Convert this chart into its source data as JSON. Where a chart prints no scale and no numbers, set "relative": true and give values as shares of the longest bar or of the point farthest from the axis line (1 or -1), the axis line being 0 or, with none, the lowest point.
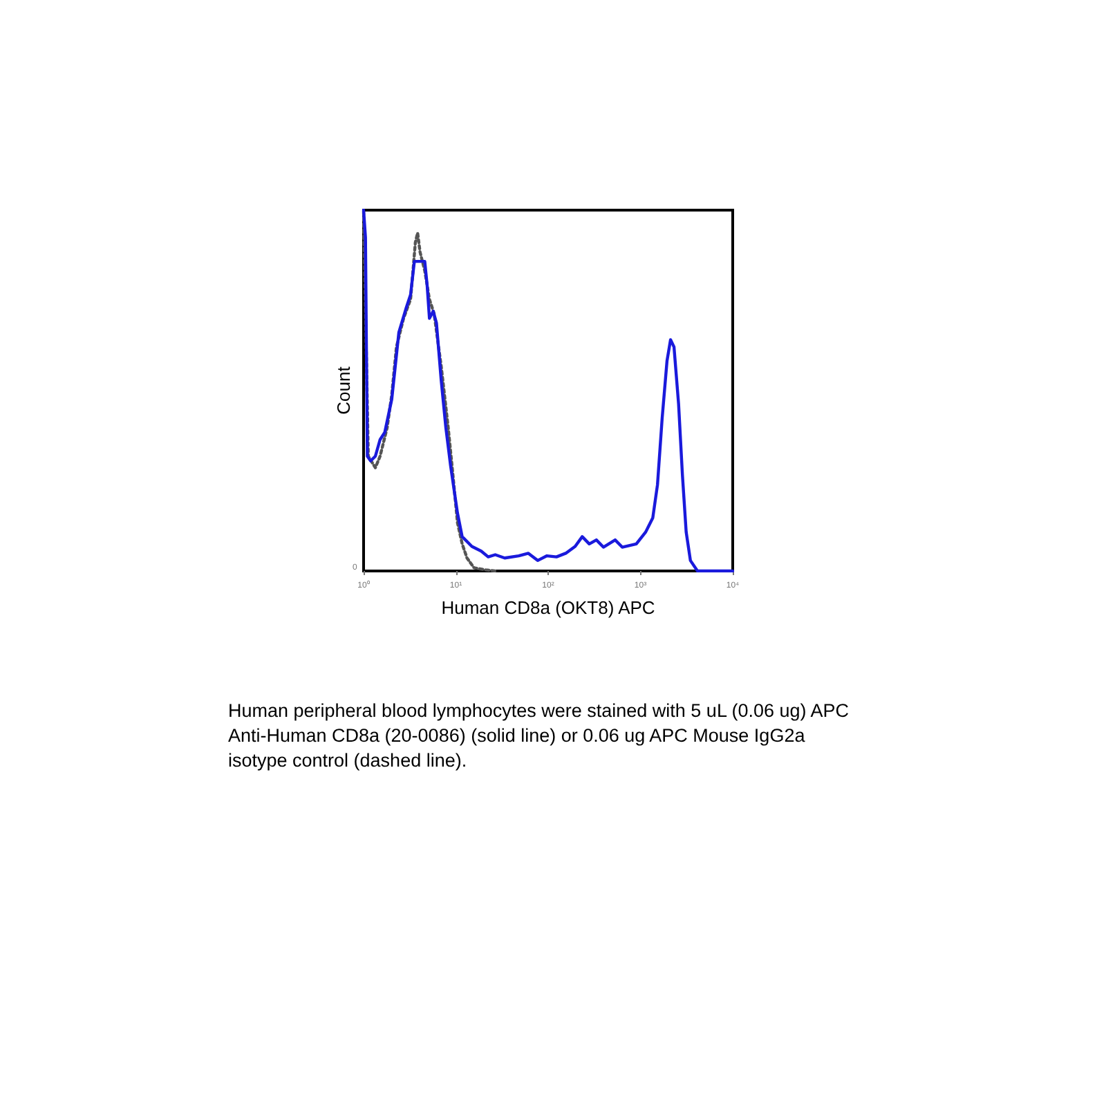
{
  "chart_data": {
    "type": "line",
    "relative": true,
    "xlabel": "Human CD8a (OKT8) APC",
    "ylabel": "Count",
    "log": "x",
    "xlim": [
      1,
      10000
    ],
    "xticks": [
      {
        "value": 1,
        "label": "10⁰"
      },
      {
        "value": 10,
        "label": "10¹"
      },
      {
        "value": 100,
        "label": "10²"
      },
      {
        "value": 1000,
        "label": "10³"
      },
      {
        "value": 10000,
        "label": "10⁴"
      }
    ],
    "grid": false,
    "marker": "none",
    "series": [
      {
        "color": "#555555",
        "line_style": "dotted",
        "x": [
          1,
          1.125,
          1.341,
          1.508,
          1.8,
          2.02,
          2.27,
          2.71,
          3.23,
          3.64,
          3.85,
          4.09,
          4.6,
          5.17,
          5.81,
          6.93,
          8.26,
          9.29,
          10.4,
          11.7,
          13.2,
          15.7,
          21.1,
          26.7
        ],
        "values": [
          0.996,
          0.318,
          0.286,
          0.318,
          0.397,
          0.489,
          0.621,
          0.7,
          0.753,
          0.911,
          0.937,
          0.884,
          0.832,
          0.753,
          0.713,
          0.568,
          0.397,
          0.266,
          0.134,
          0.075,
          0.036,
          0.009,
          0.003,
          0
        ]
      },
      {
        "color": "#1a1adc",
        "line_style": "solid",
        "x": [
          1,
          1.048,
          1.098,
          1.192,
          1.341,
          1.508,
          1.696,
          2.02,
          2.41,
          2.87,
          3.23,
          3.55,
          4.09,
          4.6,
          4.88,
          5.17,
          5.68,
          6.16,
          6.93,
          7.79,
          8.76,
          10.4,
          11.7,
          14.9,
          18.8,
          22.4,
          26.7,
          33.8,
          48,
          61,
          77,
          97,
          123,
          155,
          196,
          234,
          279,
          333,
          397,
          532,
          635,
          902,
          1140,
          1360,
          1530,
          1720,
          1940,
          2120,
          2310,
          2590,
          2850,
          3130,
          3480,
          4150,
          10000
        ],
        "values": [
          1,
          0.924,
          0.318,
          0.305,
          0.318,
          0.364,
          0.384,
          0.476,
          0.661,
          0.726,
          0.766,
          0.858,
          0.858,
          0.858,
          0.792,
          0.7,
          0.72,
          0.687,
          0.529,
          0.397,
          0.292,
          0.161,
          0.095,
          0.068,
          0.055,
          0.039,
          0.045,
          0.036,
          0.042,
          0.049,
          0.029,
          0.042,
          0.039,
          0.049,
          0.068,
          0.095,
          0.075,
          0.086,
          0.066,
          0.086,
          0.066,
          0.075,
          0.108,
          0.147,
          0.239,
          0.424,
          0.582,
          0.641,
          0.621,
          0.463,
          0.266,
          0.108,
          0.029,
          0,
          0
        ]
      }
    ],
    "annotations": [
      "0",
      "Human peripheral blood lymphocytes were stained with 5 uL (0.06 ug) APC Anti-Human CD8a (20-0086) (solid line) or 0.06 ug APC Mouse IgG2a isotype control (dashed line)."
    ]
  }
}
